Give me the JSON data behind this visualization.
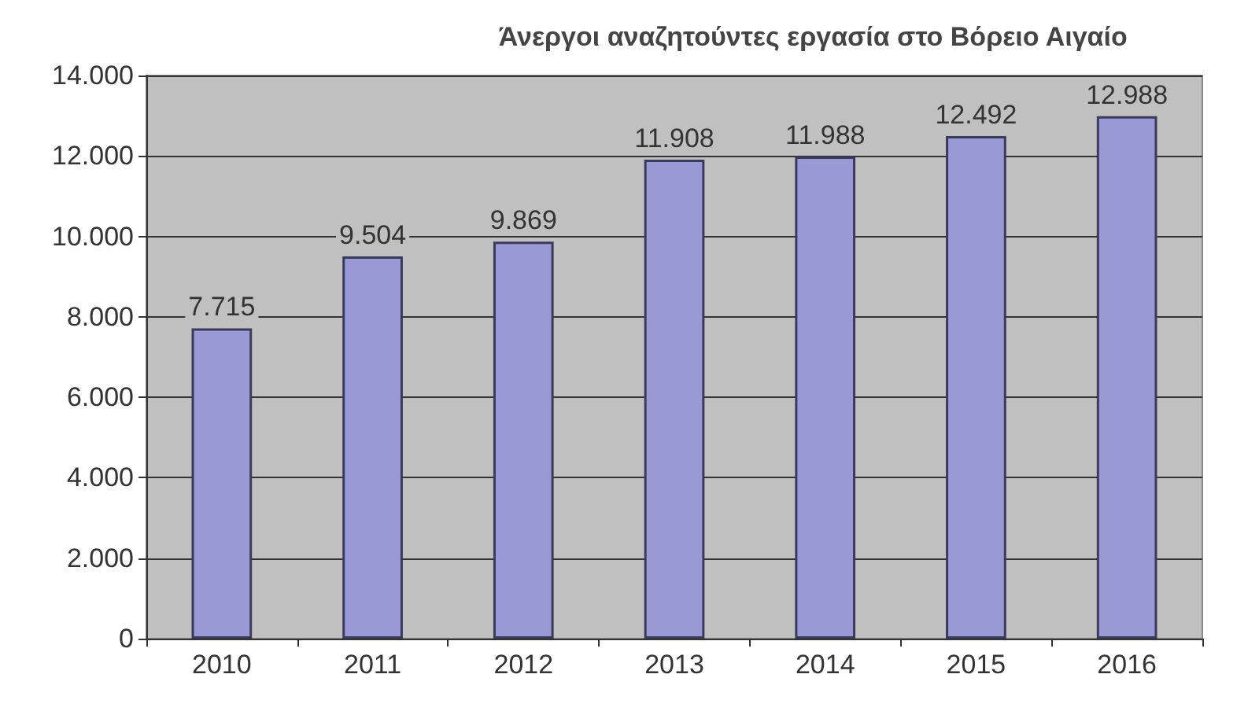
{
  "chart_data": {
    "type": "bar",
    "title": "Άνεργοι αναζητούντες εργασία στο Βόρειο Αιγαίο",
    "categories": [
      "2010",
      "2011",
      "2012",
      "2013",
      "2014",
      "2015",
      "2016"
    ],
    "values": [
      7715,
      9504,
      9869,
      11908,
      11988,
      12492,
      12988
    ],
    "value_labels": [
      "7.715",
      "9.504",
      "9.869",
      "11.908",
      "11.988",
      "12.492",
      "12.988"
    ],
    "color": "#9999d6",
    "ylim": [
      0,
      14000
    ],
    "yticks": [
      0,
      {
        "value": 2000,
        "label": "2.000"
      },
      {
        "value": 4000,
        "label": "4.000"
      },
      {
        "value": 6000,
        "label": "6.000"
      },
      {
        "value": 8000,
        "label": "8.000"
      },
      {
        "value": 10000,
        "label": "10.000"
      },
      {
        "value": 12000,
        "label": "12.000"
      },
      {
        "value": 14000,
        "label": "14.000"
      }
    ],
    "grid": "y"
  }
}
